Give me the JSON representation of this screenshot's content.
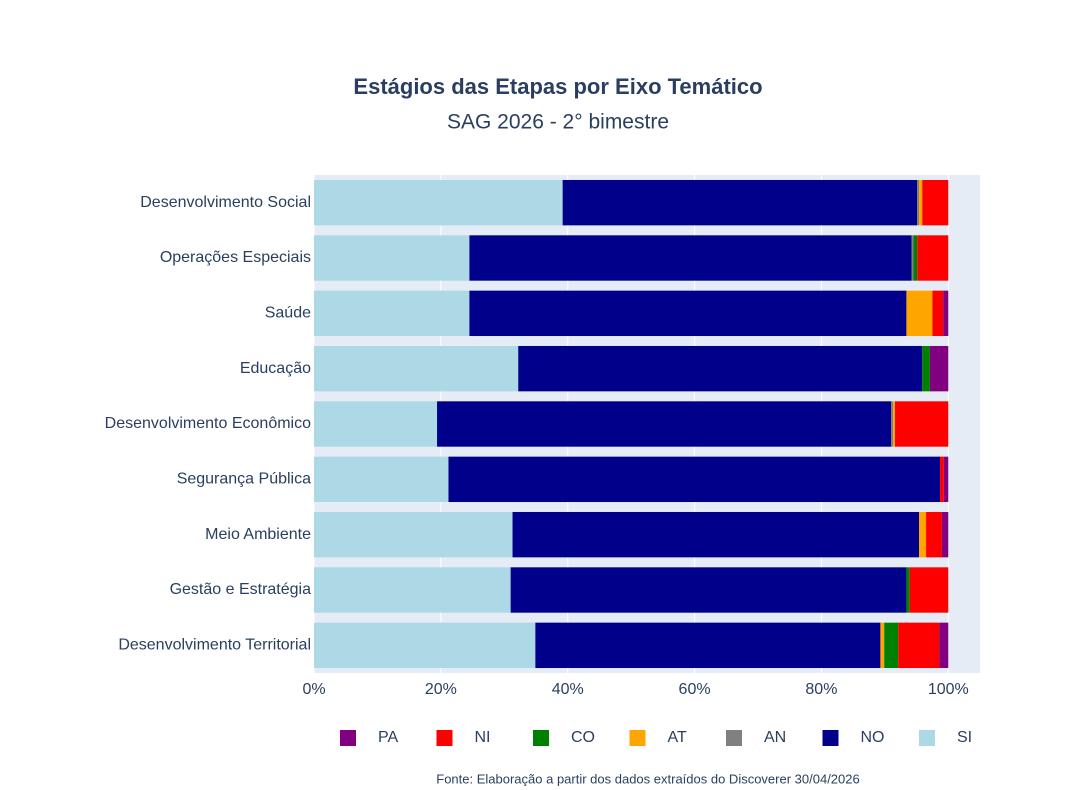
{
  "chart_data": {
    "type": "stacked-barh",
    "title": "Estágios das Etapas por Eixo Temático",
    "subtitle": "SAG 2026 - 2° bimestre",
    "source": "Fonte: Elaboração a partir dos dados extraídos do Discoverer 30/04/2026",
    "categories": [
      "Desenvolvimento Social",
      "Operações Especiais",
      "Saúde",
      "Educação",
      "Desenvolvimento Econômico",
      "Segurança Pública",
      "Meio Ambiente",
      "Gestão e Estratégia",
      "Desenvolvimento Territorial"
    ],
    "series": [
      {
        "name": "SI",
        "color": "#add8e6",
        "values": [
          39.2,
          24.5,
          24.5,
          32.2,
          19.4,
          21.2,
          31.3,
          31.0,
          34.9
        ]
      },
      {
        "name": "NO",
        "color": "#00008b",
        "values": [
          55.9,
          69.7,
          68.9,
          63.7,
          71.6,
          77.5,
          64.1,
          62.4,
          54.4
        ]
      },
      {
        "name": "AN",
        "color": "#808080",
        "values": [
          0.3,
          0.3,
          0,
          0,
          0.3,
          0,
          0,
          0,
          0
        ]
      },
      {
        "name": "AT",
        "color": "#ffa500",
        "values": [
          0.5,
          0,
          4.1,
          0,
          0.3,
          0,
          1.1,
          0,
          0.6
        ]
      },
      {
        "name": "CO",
        "color": "#008000",
        "values": [
          0,
          0.6,
          0,
          1.2,
          0,
          0,
          0,
          0.5,
          2.2
        ]
      },
      {
        "name": "NI",
        "color": "#ff0000",
        "values": [
          4.1,
          4.9,
          1.7,
          0,
          8.4,
          0.6,
          2.5,
          6.1,
          6.5
        ]
      },
      {
        "name": "PA",
        "color": "#800080",
        "values": [
          0,
          0,
          0.8,
          2.9,
          0,
          0.7,
          1.0,
          0,
          1.4
        ]
      }
    ],
    "xlim": [
      0,
      105
    ],
    "xticks": [
      {
        "value": 0,
        "label": "0%"
      },
      {
        "value": 20,
        "label": "20%"
      },
      {
        "value": 40,
        "label": "40%"
      },
      {
        "value": 60,
        "label": "60%"
      },
      {
        "value": 80,
        "label": "80%"
      },
      {
        "value": 100,
        "label": "100%"
      }
    ],
    "grid": true
  }
}
